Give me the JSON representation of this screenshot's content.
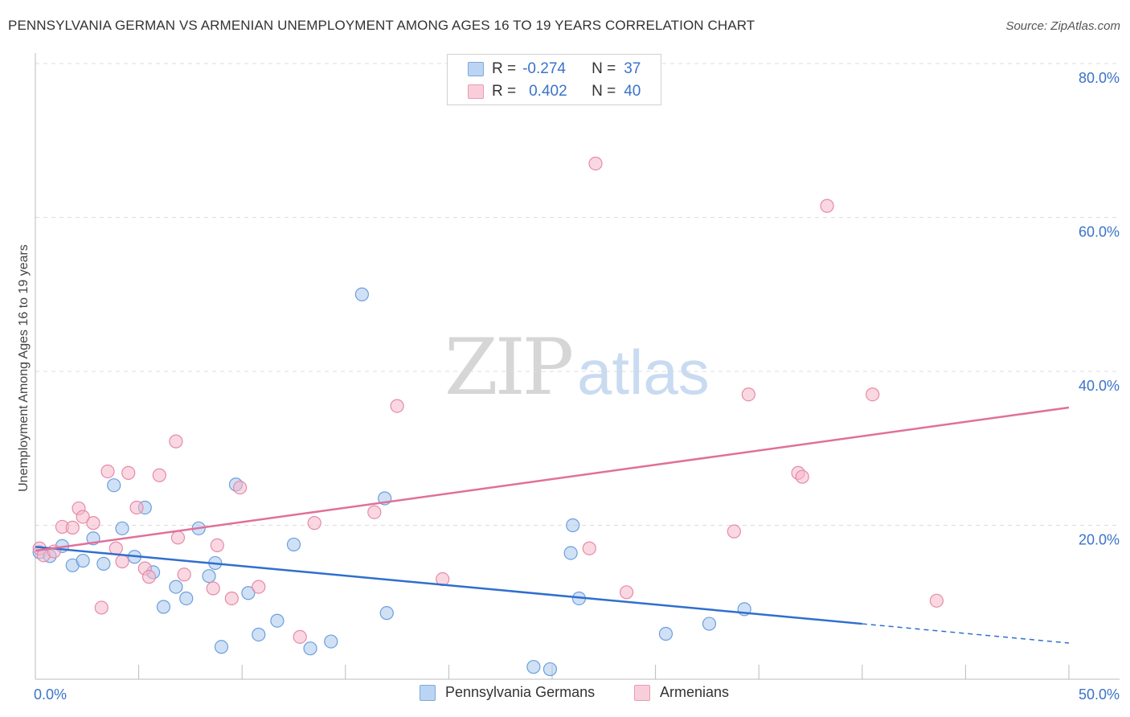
{
  "title": "PENNSYLVANIA GERMAN VS ARMENIAN UNEMPLOYMENT AMONG AGES 16 TO 19 YEARS CORRELATION CHART",
  "source": "Source: ZipAtlas.com",
  "watermark": {
    "zip": "ZIP",
    "atlas": "atlas"
  },
  "legend_top": {
    "rows": [
      {
        "r_label": "R =",
        "r_value": "-0.274",
        "n_label": "N =",
        "n_value": "37",
        "color": "#a9c8ef"
      },
      {
        "r_label": "R =",
        "r_value": "0.402",
        "n_label": "N =",
        "n_value": "40",
        "color": "#f5b8ca"
      }
    ]
  },
  "legend_bottom": {
    "items": [
      {
        "label": "Pennsylvania Germans",
        "color": "#a9c8ef"
      },
      {
        "label": "Armenians",
        "color": "#f5b8ca"
      }
    ]
  },
  "chart_data": {
    "type": "scatter",
    "title": "PENNSYLVANIA GERMAN VS ARMENIAN UNEMPLOYMENT AMONG AGES 16 TO 19 YEARS CORRELATION CHART",
    "xlabel": "",
    "ylabel": "Unemployment Among Ages 16 to 19 years",
    "xlim": [
      0,
      50
    ],
    "ylim": [
      0,
      80
    ],
    "x_ticks": [
      {
        "value": 0,
        "label": "0.0%"
      },
      {
        "value": 50,
        "label": "50.0%"
      }
    ],
    "y_ticks": [
      {
        "value": 20,
        "label": "20.0%"
      },
      {
        "value": 40,
        "label": "40.0%"
      },
      {
        "value": 60,
        "label": "60.0%"
      },
      {
        "value": 80,
        "label": "80.0%"
      }
    ],
    "grid": true,
    "legend_position": "bottom",
    "series": [
      {
        "name": "Pennsylvania Germans",
        "color": "#6a9fdc",
        "fill": "#a9c8ef",
        "trend": {
          "x0": 0,
          "y0": 17.2,
          "x1": 40,
          "y1": 7.2,
          "dash_x1": 50,
          "dash_y1": 4.7,
          "color": "#2f6fce"
        },
        "points": [
          {
            "x": 0.2,
            "y": 16.5
          },
          {
            "x": 0.7,
            "y": 16.0
          },
          {
            "x": 1.3,
            "y": 17.3
          },
          {
            "x": 1.8,
            "y": 14.8
          },
          {
            "x": 2.3,
            "y": 15.4
          },
          {
            "x": 2.8,
            "y": 18.3
          },
          {
            "x": 3.3,
            "y": 15.0
          },
          {
            "x": 3.8,
            "y": 25.2
          },
          {
            "x": 4.2,
            "y": 19.6
          },
          {
            "x": 4.8,
            "y": 15.9
          },
          {
            "x": 5.3,
            "y": 22.3
          },
          {
            "x": 5.7,
            "y": 13.9
          },
          {
            "x": 6.2,
            "y": 9.4
          },
          {
            "x": 6.8,
            "y": 12.0
          },
          {
            "x": 7.3,
            "y": 10.5
          },
          {
            "x": 7.9,
            "y": 19.6
          },
          {
            "x": 8.4,
            "y": 13.4
          },
          {
            "x": 8.7,
            "y": 15.1
          },
          {
            "x": 9.0,
            "y": 4.2
          },
          {
            "x": 9.7,
            "y": 25.3
          },
          {
            "x": 10.3,
            "y": 11.2
          },
          {
            "x": 10.8,
            "y": 5.8
          },
          {
            "x": 11.7,
            "y": 7.6
          },
          {
            "x": 12.5,
            "y": 17.5
          },
          {
            "x": 13.3,
            "y": 4.0
          },
          {
            "x": 14.3,
            "y": 4.9
          },
          {
            "x": 15.8,
            "y": 50.0
          },
          {
            "x": 16.9,
            "y": 23.5
          },
          {
            "x": 17.0,
            "y": 8.6
          },
          {
            "x": 24.1,
            "y": 1.6
          },
          {
            "x": 24.9,
            "y": 1.3
          },
          {
            "x": 25.9,
            "y": 16.4
          },
          {
            "x": 26.0,
            "y": 20.0
          },
          {
            "x": 26.3,
            "y": 10.5
          },
          {
            "x": 30.5,
            "y": 5.9
          },
          {
            "x": 32.6,
            "y": 7.2
          },
          {
            "x": 34.3,
            "y": 9.1
          }
        ]
      },
      {
        "name": "Armenians",
        "color": "#e58aa8",
        "fill": "#f5b8ca",
        "trend": {
          "x0": 0,
          "y0": 16.7,
          "x1": 50,
          "y1": 35.3,
          "color": "#e0709a"
        },
        "points": [
          {
            "x": 0.2,
            "y": 17.0
          },
          {
            "x": 0.4,
            "y": 16.1
          },
          {
            "x": 0.9,
            "y": 16.6
          },
          {
            "x": 1.3,
            "y": 19.8
          },
          {
            "x": 1.8,
            "y": 19.7
          },
          {
            "x": 2.1,
            "y": 22.2
          },
          {
            "x": 2.3,
            "y": 21.1
          },
          {
            "x": 2.8,
            "y": 20.3
          },
          {
            "x": 3.2,
            "y": 9.3
          },
          {
            "x": 3.5,
            "y": 27.0
          },
          {
            "x": 3.9,
            "y": 17.0
          },
          {
            "x": 4.2,
            "y": 15.3
          },
          {
            "x": 4.5,
            "y": 26.8
          },
          {
            "x": 4.9,
            "y": 22.3
          },
          {
            "x": 5.3,
            "y": 14.4
          },
          {
            "x": 5.5,
            "y": 13.3
          },
          {
            "x": 6.0,
            "y": 26.5
          },
          {
            "x": 6.8,
            "y": 30.9
          },
          {
            "x": 6.9,
            "y": 18.4
          },
          {
            "x": 7.2,
            "y": 13.6
          },
          {
            "x": 8.6,
            "y": 11.8
          },
          {
            "x": 8.8,
            "y": 17.4
          },
          {
            "x": 9.5,
            "y": 10.5
          },
          {
            "x": 9.9,
            "y": 24.9
          },
          {
            "x": 10.8,
            "y": 12.0
          },
          {
            "x": 12.8,
            "y": 5.5
          },
          {
            "x": 13.5,
            "y": 20.3
          },
          {
            "x": 16.4,
            "y": 21.7
          },
          {
            "x": 17.5,
            "y": 35.5
          },
          {
            "x": 19.7,
            "y": 13.0
          },
          {
            "x": 26.8,
            "y": 17.0
          },
          {
            "x": 27.1,
            "y": 67.0
          },
          {
            "x": 28.6,
            "y": 11.3
          },
          {
            "x": 33.8,
            "y": 19.2
          },
          {
            "x": 34.5,
            "y": 37.0
          },
          {
            "x": 36.9,
            "y": 26.8
          },
          {
            "x": 37.1,
            "y": 26.3
          },
          {
            "x": 38.3,
            "y": 61.5
          },
          {
            "x": 40.5,
            "y": 37.0
          },
          {
            "x": 43.6,
            "y": 10.2
          }
        ]
      }
    ]
  }
}
